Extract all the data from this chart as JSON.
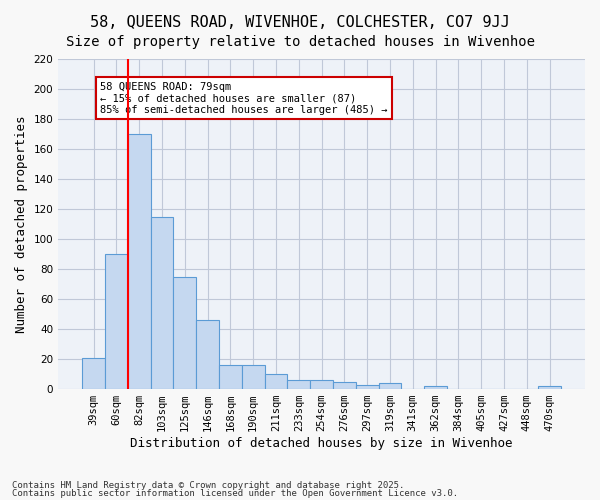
{
  "title1": "58, QUEENS ROAD, WIVENHOE, COLCHESTER, CO7 9JJ",
  "title2": "Size of property relative to detached houses in Wivenhoe",
  "xlabel": "Distribution of detached houses by size in Wivenhoe",
  "ylabel": "Number of detached properties",
  "categories": [
    "39sqm",
    "60sqm",
    "82sqm",
    "103sqm",
    "125sqm",
    "146sqm",
    "168sqm",
    "190sqm",
    "211sqm",
    "233sqm",
    "254sqm",
    "276sqm",
    "297sqm",
    "319sqm",
    "341sqm",
    "362sqm",
    "384sqm",
    "405sqm",
    "427sqm",
    "448sqm",
    "470sqm"
  ],
  "values": [
    21,
    90,
    170,
    115,
    75,
    46,
    16,
    16,
    10,
    6,
    6,
    5,
    3,
    4,
    0,
    2,
    0,
    0,
    0,
    0,
    2
  ],
  "bar_color": "#c5d8f0",
  "bar_edge_color": "#5b9bd5",
  "grid_color": "#c0c8d8",
  "bg_color": "#eef2f8",
  "red_line_x": 2,
  "annotation_text": "58 QUEENS ROAD: 79sqm\n← 15% of detached houses are smaller (87)\n85% of semi-detached houses are larger (485) →",
  "annotation_box_color": "#ffffff",
  "annotation_border_color": "#cc0000",
  "ylim": [
    0,
    220
  ],
  "yticks": [
    0,
    20,
    40,
    60,
    80,
    100,
    120,
    140,
    160,
    180,
    200,
    220
  ],
  "footer1": "Contains HM Land Registry data © Crown copyright and database right 2025.",
  "footer2": "Contains public sector information licensed under the Open Government Licence v3.0.",
  "title_fontsize": 11,
  "subtitle_fontsize": 10,
  "axis_fontsize": 9,
  "tick_fontsize": 7.5
}
